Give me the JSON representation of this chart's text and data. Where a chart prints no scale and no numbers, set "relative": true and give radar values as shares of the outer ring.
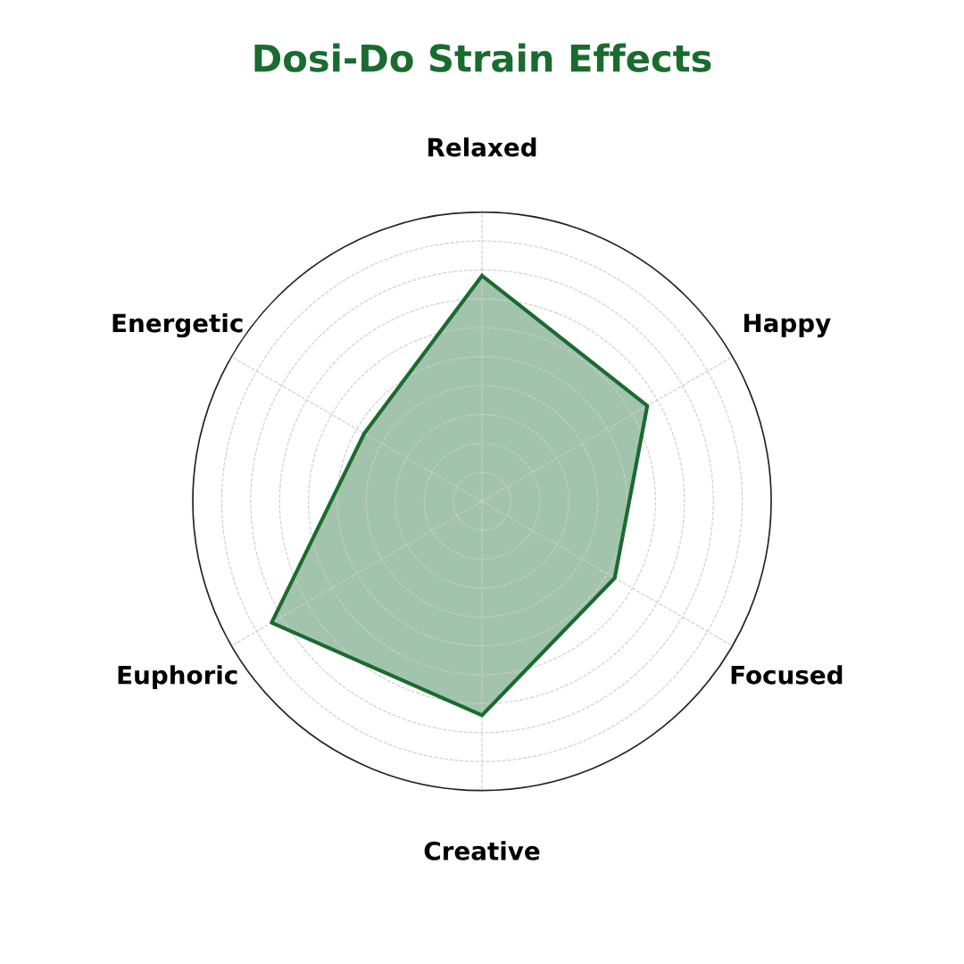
{
  "chart_data": {
    "type": "radar",
    "title": "Dosi-Do Strain Effects",
    "relative": true,
    "grid": true,
    "categories": [
      "Relaxed",
      "Happy",
      "Focused",
      "Creative",
      "Euphoric",
      "Energetic"
    ],
    "series": [
      {
        "color": "#1a6b30",
        "values": [
          0.78,
          0.66,
          0.53,
          0.74,
          0.84,
          0.47
        ]
      }
    ]
  }
}
